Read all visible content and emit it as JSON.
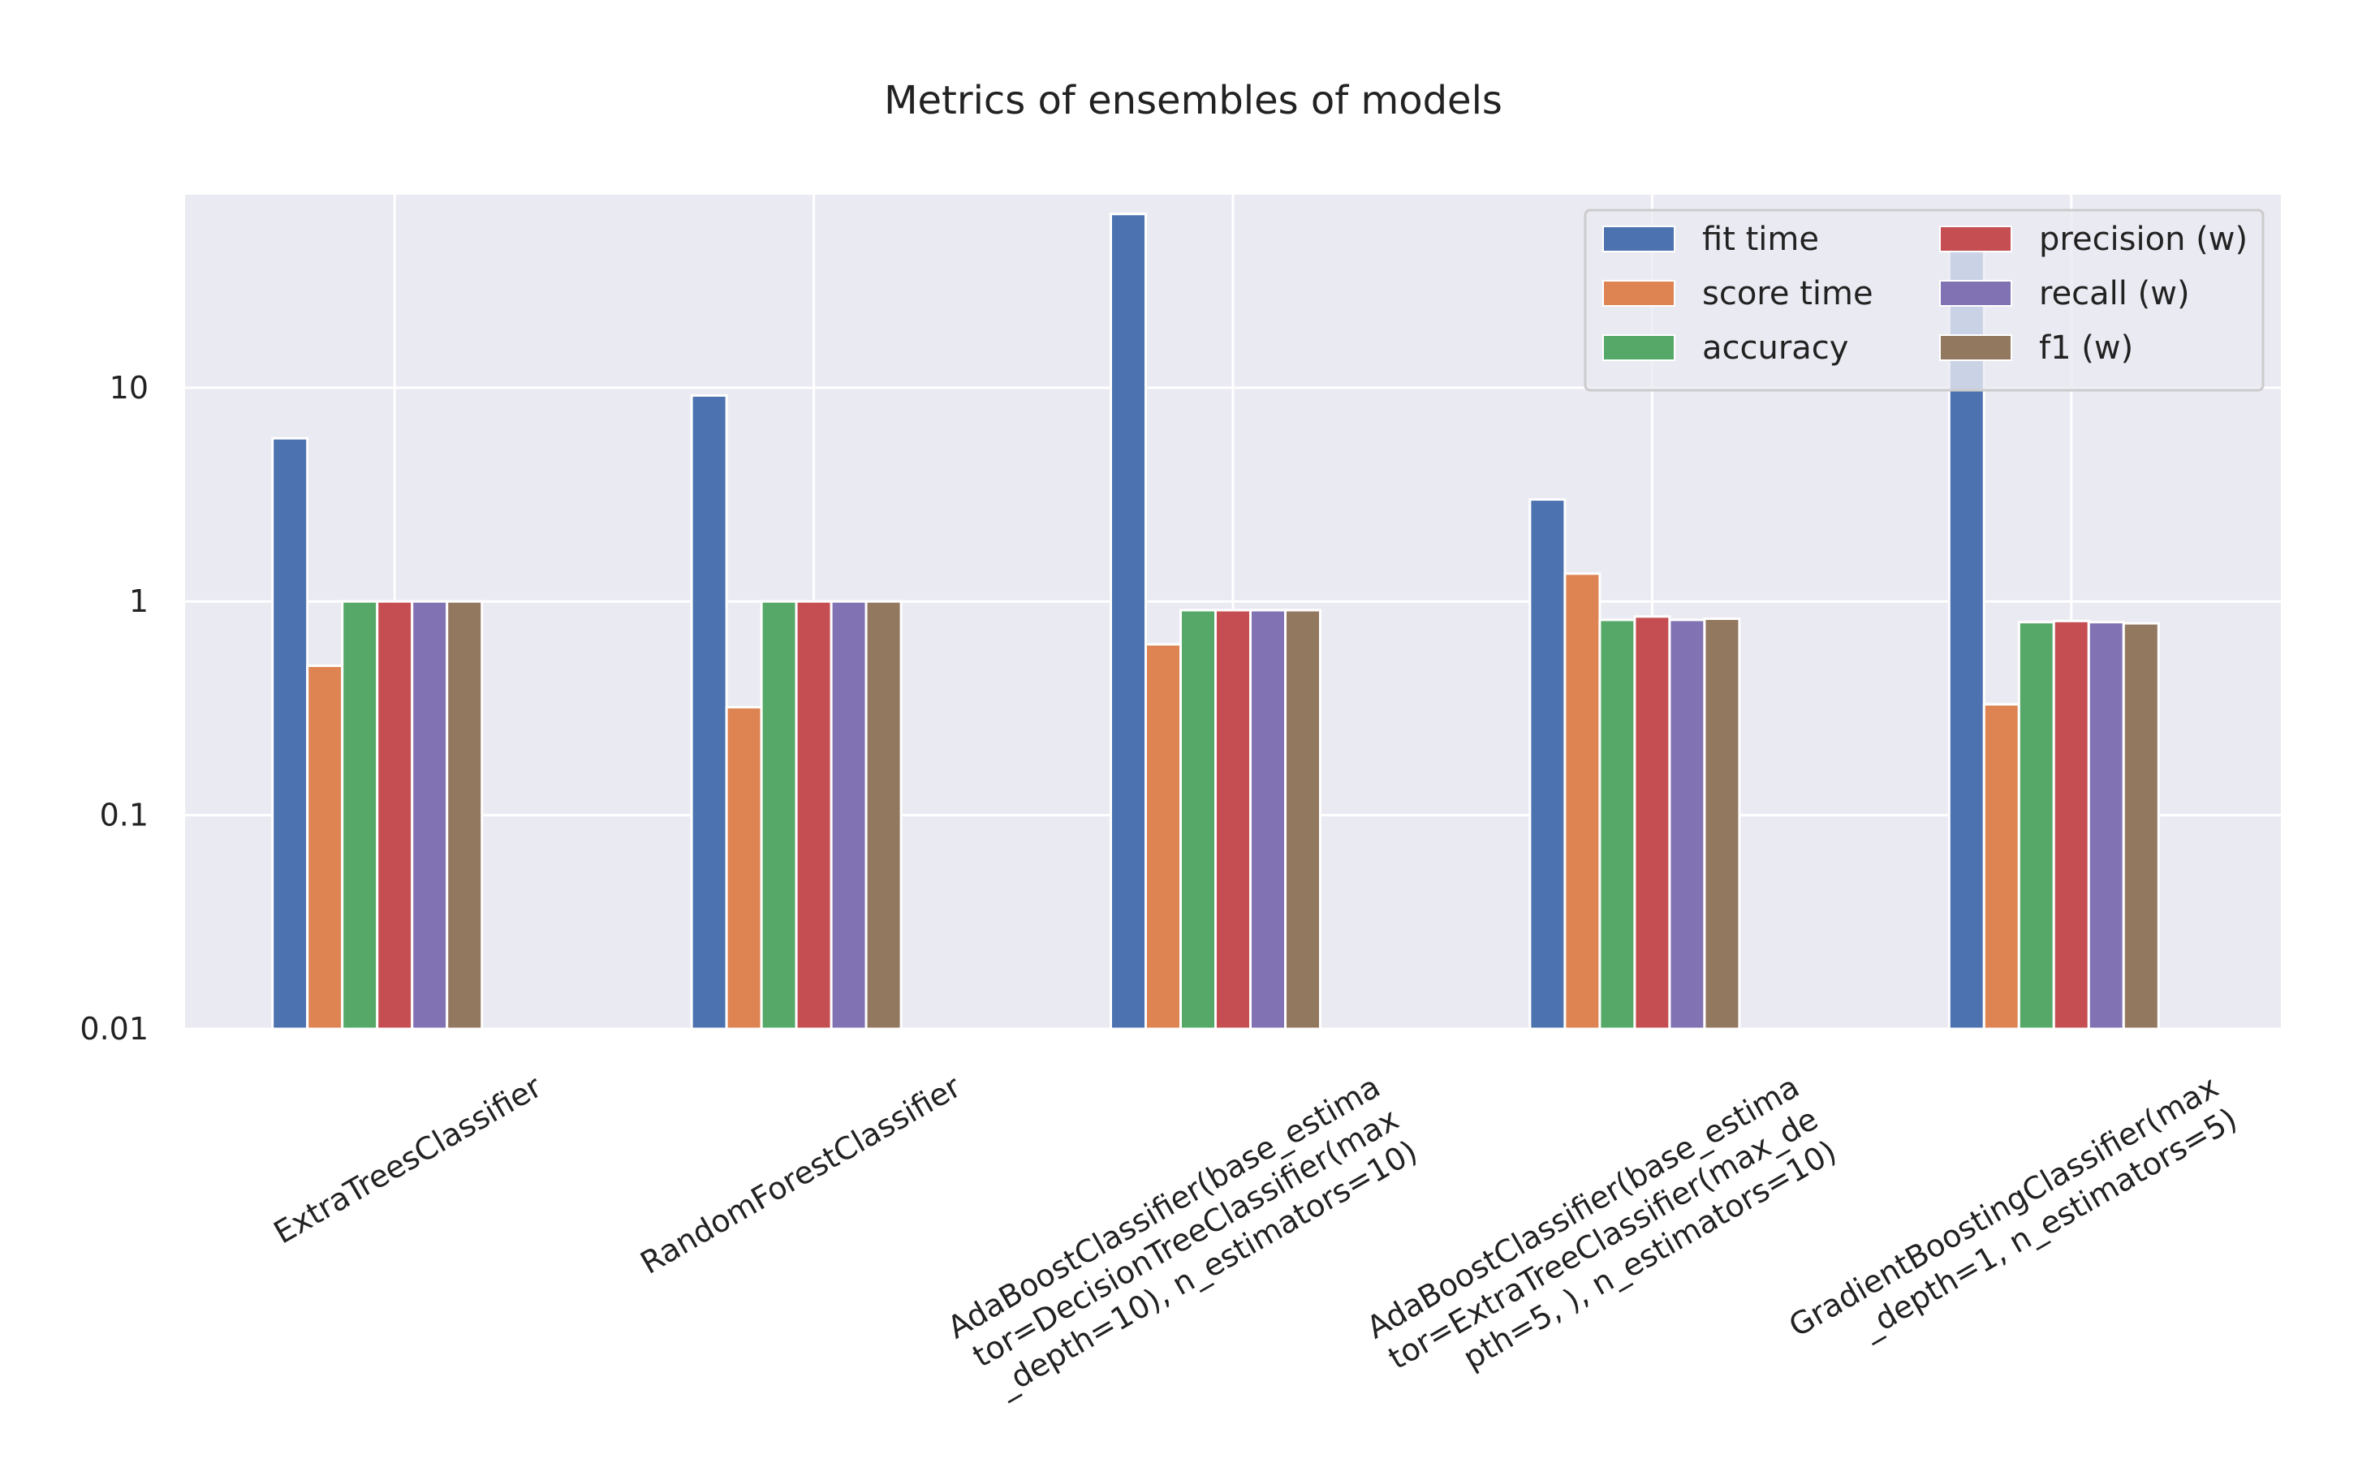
{
  "chart_data": {
    "type": "bar",
    "title": "Metrics of ensembles of models",
    "xlabel": "",
    "ylabel": "",
    "yscale": "log",
    "ylim": [
      0.01,
      80
    ],
    "yticks": [
      0.01,
      0.1,
      1,
      10
    ],
    "ytick_labels": [
      "0.01",
      "0.1",
      "1",
      "10"
    ],
    "grid": true,
    "legend_position": "top-right",
    "legend_ncol": 2,
    "categories": [
      [
        "ExtraTreesClassifier"
      ],
      [
        "RandomForestClassifier"
      ],
      [
        "AdaBoostClassifier(base_estima",
        "tor=DecisionTreeClassifier(max",
        "_depth=10), n_estimators=10)"
      ],
      [
        "AdaBoostClassifier(base_estima",
        "tor=ExtraTreeClassifier(max_de",
        "pth=5, ), n_estimators=10)"
      ],
      [
        "GradientBoostingClassifier(max",
        "_depth=1, n_estimators=5)"
      ]
    ],
    "series": [
      {
        "name": "fit time",
        "color": "#4c72b0",
        "values": [
          5.8,
          9.2,
          65.0,
          3.0,
          45.0
        ]
      },
      {
        "name": "score time",
        "color": "#dd8452",
        "values": [
          0.5,
          0.32,
          0.63,
          1.35,
          0.33
        ]
      },
      {
        "name": "accuracy",
        "color": "#55a868",
        "values": [
          1.0,
          1.0,
          0.91,
          0.82,
          0.8
        ]
      },
      {
        "name": "precision (w)",
        "color": "#c44e52",
        "values": [
          1.0,
          1.0,
          0.91,
          0.85,
          0.81
        ]
      },
      {
        "name": "recall (w)",
        "color": "#8172b3",
        "values": [
          1.0,
          1.0,
          0.91,
          0.82,
          0.8
        ]
      },
      {
        "name": "f1 (w)",
        "color": "#937860",
        "values": [
          1.0,
          1.0,
          0.91,
          0.83,
          0.79
        ]
      }
    ]
  }
}
